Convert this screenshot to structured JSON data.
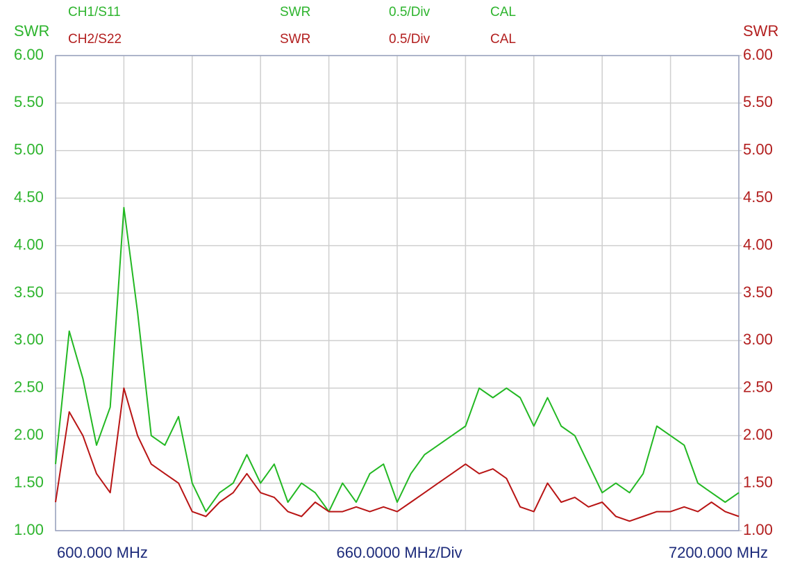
{
  "chart_data": {
    "type": "line",
    "ylabel": "SWR",
    "y2label": "SWR",
    "x_start_label": "600.000 MHz",
    "x_div_label": "660.0000 MHz/Div",
    "x_stop_label": "7200.000 MHz",
    "xlim": [
      600,
      7200
    ],
    "x_div": 660,
    "ylim": [
      1,
      6
    ],
    "y2lim": [
      1,
      6
    ],
    "yticks": [
      {
        "value": 1,
        "label": "1.00"
      },
      {
        "value": 1.5,
        "label": "1.50"
      },
      {
        "value": 2,
        "label": "2.00"
      },
      {
        "value": 2.5,
        "label": "2.50"
      },
      {
        "value": 3,
        "label": "3.00"
      },
      {
        "value": 3.5,
        "label": "3.50"
      },
      {
        "value": 4,
        "label": "4.00"
      },
      {
        "value": 4.5,
        "label": "4.50"
      },
      {
        "value": 5,
        "label": "5.00"
      },
      {
        "value": 5.5,
        "label": "5.50"
      },
      {
        "value": 6,
        "label": "6.00"
      }
    ],
    "y2ticks": [
      {
        "value": 1,
        "label": "1.00"
      },
      {
        "value": 1.5,
        "label": "1.50"
      },
      {
        "value": 2,
        "label": "2.00"
      },
      {
        "value": 2.5,
        "label": "2.50"
      },
      {
        "value": 3,
        "label": "3.00"
      },
      {
        "value": 3.5,
        "label": "3.50"
      },
      {
        "value": 4,
        "label": "4.00"
      },
      {
        "value": 4.5,
        "label": "4.50"
      },
      {
        "value": 5,
        "label": "5.00"
      },
      {
        "value": 5.5,
        "label": "5.50"
      },
      {
        "value": 6,
        "label": "6.00"
      }
    ],
    "grid": true,
    "x": [
      600,
      732,
      864,
      996,
      1128,
      1260,
      1392,
      1524,
      1656,
      1788,
      1920,
      2052,
      2184,
      2316,
      2448,
      2580,
      2712,
      2844,
      2976,
      3108,
      3240,
      3372,
      3504,
      3636,
      3768,
      3900,
      4032,
      4164,
      4296,
      4428,
      4560,
      4692,
      4824,
      4956,
      5088,
      5220,
      5352,
      5484,
      5616,
      5748,
      5880,
      6012,
      6144,
      6276,
      6408,
      6540,
      6672,
      6804,
      6936,
      7068,
      7200
    ],
    "series": [
      {
        "name": "CH1/S11",
        "format": "SWR",
        "scale": "0.5/Div",
        "status": "CAL",
        "color": "#22b822",
        "axis": "y",
        "values": [
          1.7,
          3.1,
          2.6,
          1.9,
          2.3,
          4.4,
          3.3,
          2.0,
          1.9,
          2.2,
          1.5,
          1.2,
          1.4,
          1.5,
          1.8,
          1.5,
          1.7,
          1.3,
          1.5,
          1.4,
          1.2,
          1.5,
          1.3,
          1.6,
          1.7,
          1.3,
          1.6,
          1.8,
          1.9,
          2.0,
          2.1,
          2.5,
          2.4,
          2.5,
          2.4,
          2.1,
          2.4,
          2.1,
          2.0,
          1.7,
          1.4,
          1.5,
          1.4,
          1.6,
          2.1,
          2.0,
          1.9,
          1.5,
          1.4,
          1.3,
          1.4
        ]
      },
      {
        "name": "CH2/S22",
        "format": "SWR",
        "scale": "0.5/Div",
        "status": "CAL",
        "color": "#b81414",
        "axis": "y2",
        "values": [
          1.3,
          2.25,
          2.0,
          1.6,
          1.4,
          2.5,
          2.0,
          1.7,
          1.6,
          1.5,
          1.2,
          1.15,
          1.3,
          1.4,
          1.6,
          1.4,
          1.35,
          1.2,
          1.15,
          1.3,
          1.2,
          1.2,
          1.25,
          1.2,
          1.25,
          1.2,
          1.3,
          1.4,
          1.5,
          1.6,
          1.7,
          1.6,
          1.65,
          1.55,
          1.25,
          1.2,
          1.5,
          1.3,
          1.35,
          1.25,
          1.3,
          1.15,
          1.1,
          1.15,
          1.2,
          1.2,
          1.25,
          1.2,
          1.3,
          1.2,
          1.15
        ]
      }
    ]
  }
}
